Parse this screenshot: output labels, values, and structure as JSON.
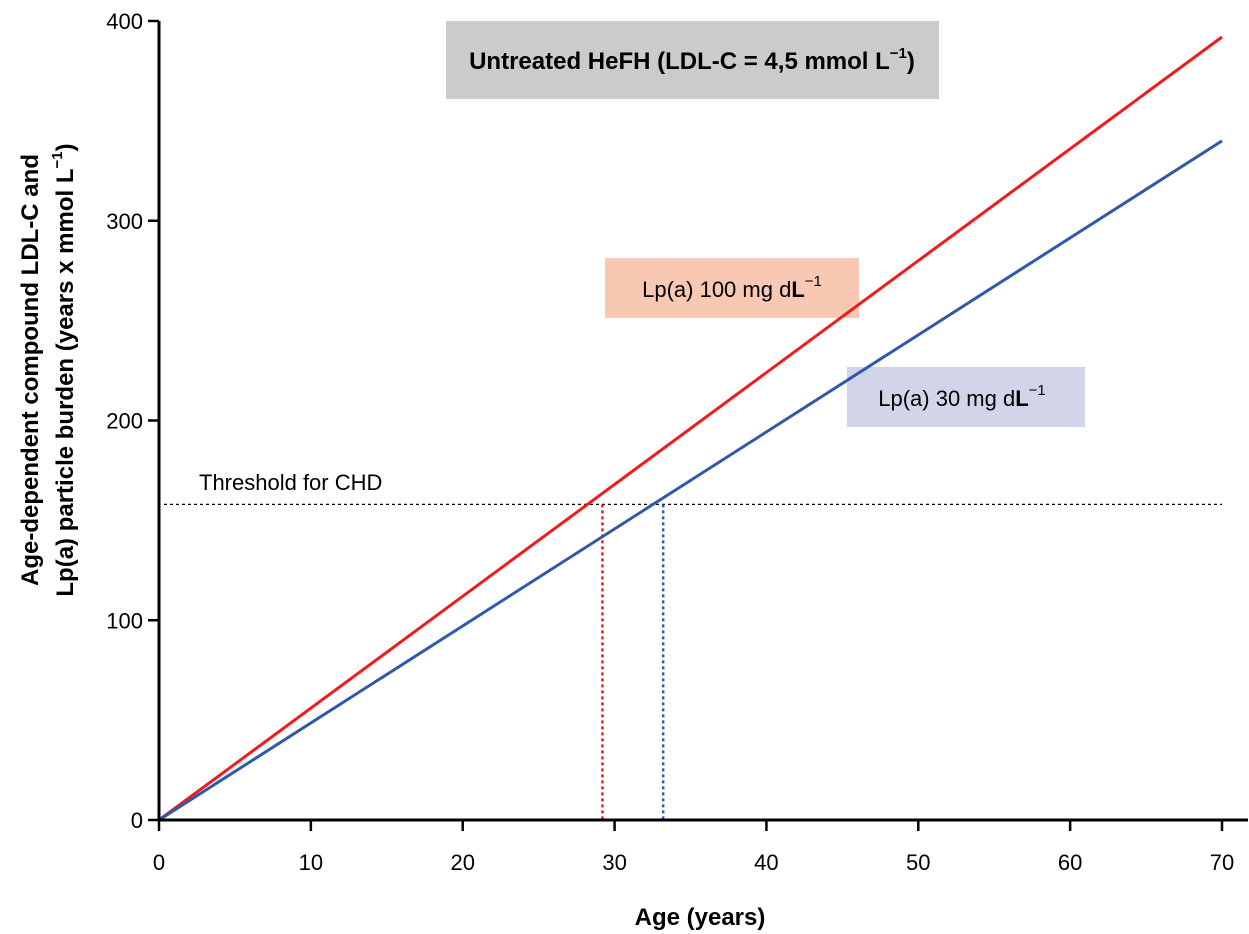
{
  "chart_data": {
    "type": "line",
    "title": {
      "main": "Untreated HeFH (LDL-C = 4,5 mmol  L",
      "sup": "−1",
      "close": ")"
    },
    "xlabel": "Age (years)",
    "ylabel": {
      "line1": "Age-dependent compound LDL-C and",
      "line2_main": "Lp(a) particle burden (years x mmol  L",
      "line2_sup": "−1",
      "line2_close": ")"
    },
    "xlim": [
      0,
      70
    ],
    "ylim": [
      0,
      400
    ],
    "x_ticks": [
      0,
      10,
      20,
      30,
      40,
      50,
      60,
      70
    ],
    "y_ticks": [
      0,
      100,
      200,
      300,
      400
    ],
    "series": [
      {
        "label_main": "Lp(a) 100 mg d",
        "label_bold": "L",
        "label_sup": "−1",
        "color": "#ee1c1c",
        "label_bg": "#f8c8b3",
        "x": [
          0,
          70
        ],
        "y": [
          0,
          392
        ],
        "threshold_age": 29.2
      },
      {
        "label_main": "Lp(a) 30 mg d",
        "label_bold": "L",
        "label_sup": "−1",
        "color": "#2f5aa8",
        "label_bg": "#d2d5ea",
        "x": [
          0,
          70
        ],
        "y": [
          0,
          340
        ],
        "threshold_age": 33.2
      }
    ],
    "threshold": {
      "label": "Threshold for CHD",
      "value": 158
    },
    "title_bg": "#cbcbcb",
    "grid": false,
    "legend": "inline-labels"
  }
}
